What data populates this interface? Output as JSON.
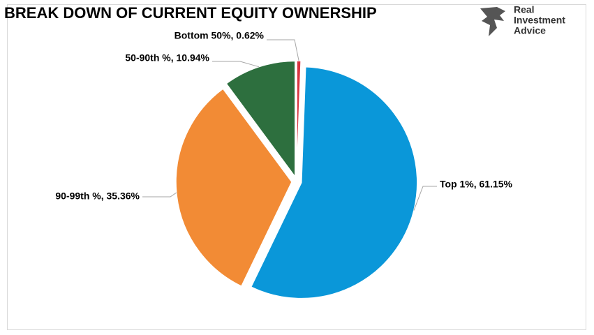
{
  "chart_data": {
    "type": "pie",
    "title": "BREAK DOWN OF CURRENT EQUITY OWNERSHIP",
    "values": [
      0.62,
      61.15,
      35.36,
      10.94
    ],
    "value_labels": [
      "Bottom 50%, 0.62%",
      "Top 1%, 61.15%",
      "90-99th %, 35.36%",
      "50-90th %, 10.94%"
    ],
    "colors": [
      "#d8343f",
      "#0a97d9",
      "#f28b35",
      "#2d6f3e"
    ]
  },
  "logo": {
    "lines": [
      "Real",
      "Investment",
      "Advice"
    ]
  }
}
